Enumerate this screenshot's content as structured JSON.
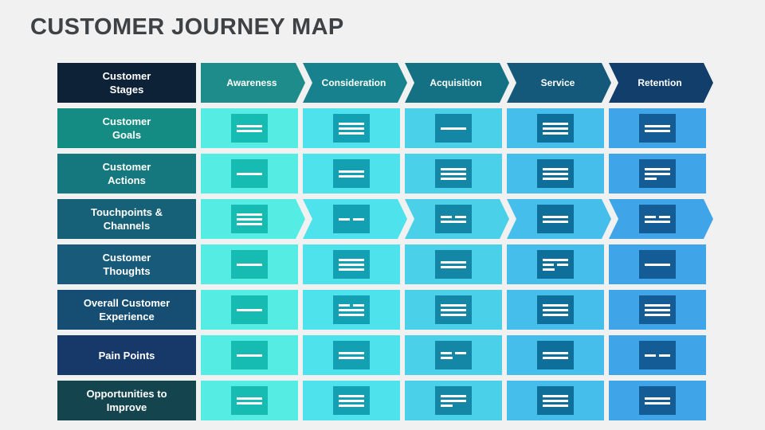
{
  "title": "CUSTOMER JOURNEY MAP",
  "colors": {
    "background": "#f1f1f2",
    "title_text": "#3f4245",
    "line_glyph": "#ffffff"
  },
  "table": {
    "corner": {
      "lines": [
        "Customer",
        "Stages"
      ],
      "bg": "#0d2137"
    },
    "stages": [
      {
        "label": "Awareness",
        "bg": "#1d8c8b"
      },
      {
        "label": "Consideration",
        "bg": "#17828d"
      },
      {
        "label": "Acquisition",
        "bg": "#147184"
      },
      {
        "label": "Service",
        "bg": "#14597a"
      },
      {
        "label": "Retention",
        "bg": "#123e6b"
      }
    ],
    "columns": [
      {
        "cell_bg": "#55ece4",
        "icon_bg": "#16bcb2"
      },
      {
        "cell_bg": "#4ee2ec",
        "icon_bg": "#12a0b2"
      },
      {
        "cell_bg": "#4bd0ea",
        "icon_bg": "#1487a6"
      },
      {
        "cell_bg": "#45beeb",
        "icon_bg": "#0f6f9b"
      },
      {
        "cell_bg": "#40a4e8",
        "icon_bg": "#145c95"
      }
    ],
    "rows": [
      {
        "lines": [
          "Customer",
          "Goals"
        ],
        "bg": "#148b83",
        "arrow": false,
        "cells": [
          [
            "full",
            "full"
          ],
          [
            "full",
            "full",
            "full"
          ],
          [
            "full"
          ],
          [
            "full",
            "full",
            "full"
          ],
          [
            "full",
            "full"
          ]
        ]
      },
      {
        "lines": [
          "Customer",
          "Actions"
        ],
        "bg": "#15787f",
        "arrow": false,
        "cells": [
          [
            "full"
          ],
          [
            "full",
            "full"
          ],
          [
            "full",
            "full",
            "full"
          ],
          [
            "full",
            "full",
            "full"
          ],
          [
            "full",
            "full",
            "short"
          ]
        ]
      },
      {
        "lines": [
          "Touchpoints &",
          "Channels"
        ],
        "bg": "#166177",
        "arrow": true,
        "cells": [
          [
            "full",
            "full",
            "full"
          ],
          [
            "split"
          ],
          [
            "split",
            "full"
          ],
          [
            "full",
            "full"
          ],
          [
            "split",
            "full"
          ]
        ]
      },
      {
        "lines": [
          "Customer",
          "Thoughts"
        ],
        "bg": "#175a7a",
        "arrow": false,
        "cells": [
          [
            "full"
          ],
          [
            "full",
            "full",
            "full"
          ],
          [
            "full",
            "full"
          ],
          [
            "full",
            "split",
            "short"
          ],
          [
            "full"
          ]
        ]
      },
      {
        "lines": [
          "Overall Customer",
          "Experience"
        ],
        "bg": "#164e73",
        "arrow": false,
        "cells": [
          [
            "full"
          ],
          [
            "split",
            "full",
            "full"
          ],
          [
            "full",
            "full",
            "full"
          ],
          [
            "full",
            "full",
            "full"
          ],
          [
            "full",
            "full",
            "full"
          ]
        ]
      },
      {
        "lines": [
          "Pain Points"
        ],
        "bg": "#17396a",
        "arrow": false,
        "cells": [
          [
            "full"
          ],
          [
            "full",
            "full"
          ],
          [
            "split",
            "short"
          ],
          [
            "full",
            "full"
          ],
          [
            "split"
          ]
        ]
      },
      {
        "lines": [
          "Opportunities to",
          "Improve"
        ],
        "bg": "#14454f",
        "arrow": false,
        "cells": [
          [
            "full",
            "full"
          ],
          [
            "full",
            "full",
            "full"
          ],
          [
            "full",
            "full",
            "short"
          ],
          [
            "full",
            "full",
            "full"
          ],
          [
            "full",
            "full"
          ]
        ]
      }
    ]
  }
}
